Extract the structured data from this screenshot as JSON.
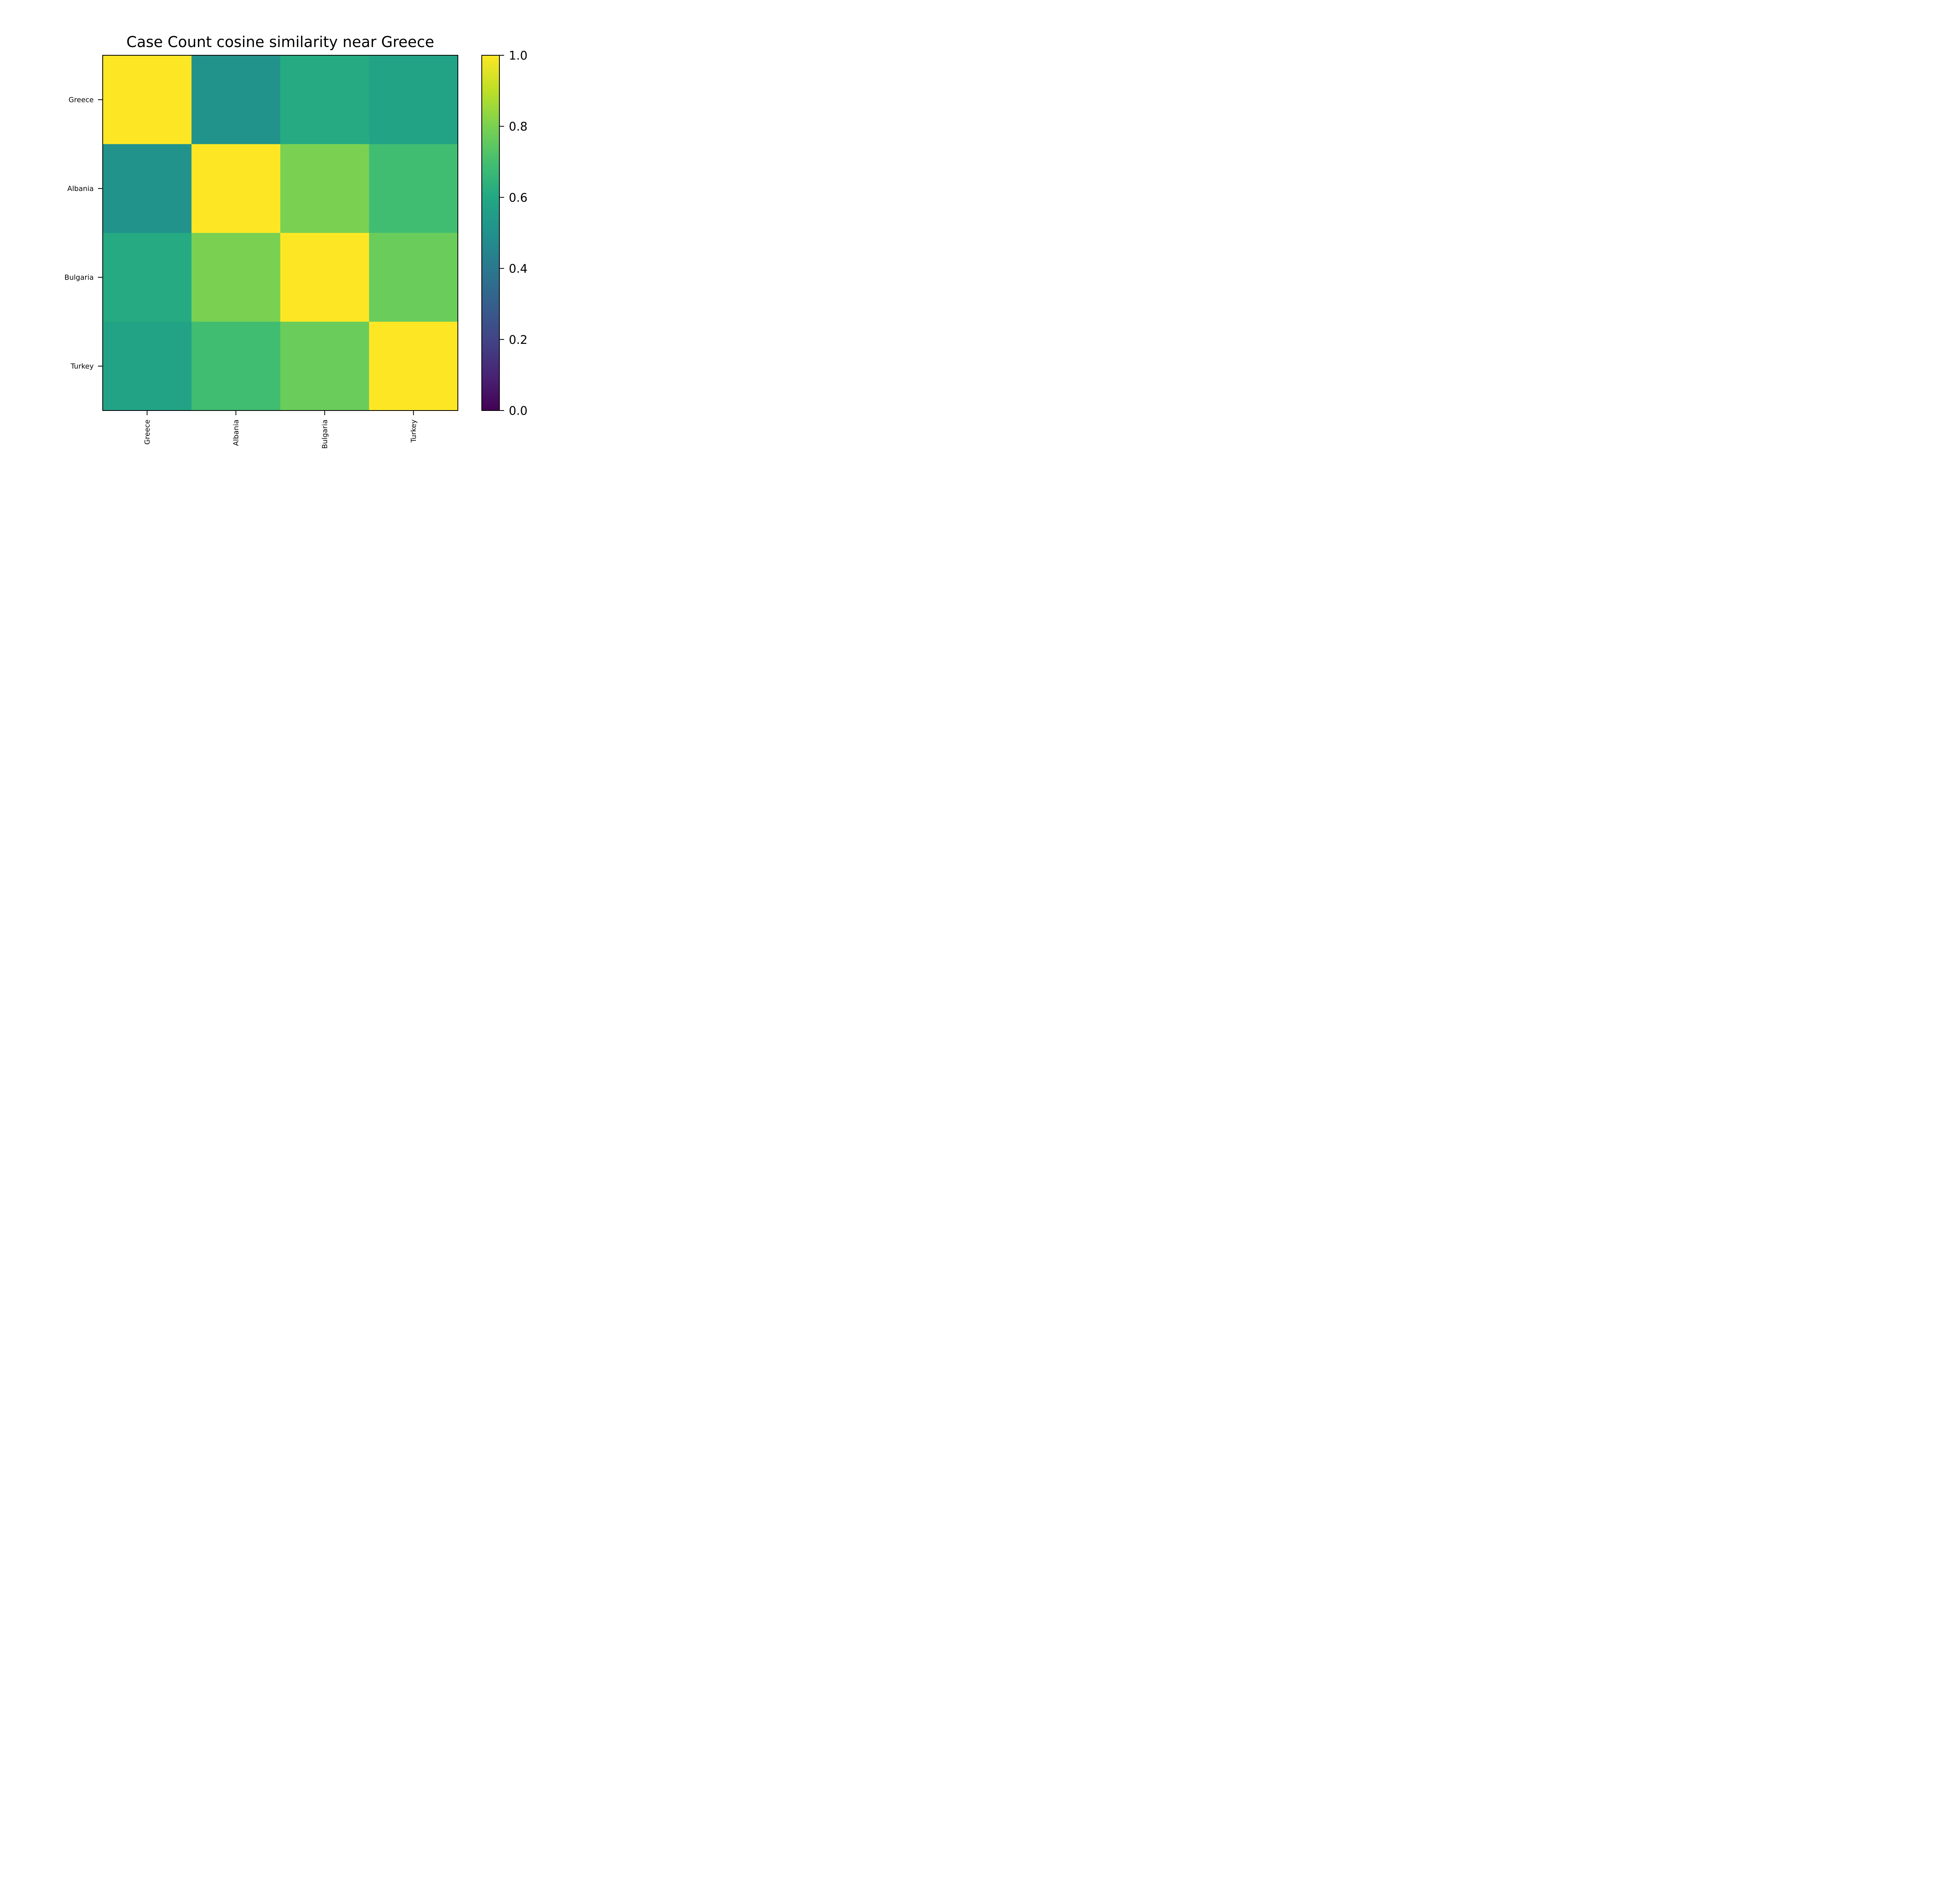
{
  "chart_data": {
    "type": "heatmap",
    "title": "Case Count cosine similarity near Greece",
    "row_labels": [
      "Greece",
      "Albania",
      "Bulgaria",
      "Turkey"
    ],
    "col_labels": [
      "Greece",
      "Albania",
      "Bulgaria",
      "Turkey"
    ],
    "values": [
      [
        1.0,
        0.51,
        0.61,
        0.58
      ],
      [
        0.51,
        1.0,
        0.8,
        0.69
      ],
      [
        0.61,
        0.8,
        1.0,
        0.77
      ],
      [
        0.58,
        0.69,
        0.77,
        1.0
      ]
    ],
    "colormap": "viridis",
    "colorbar": {
      "range": [
        0.0,
        1.0
      ],
      "ticks": [
        "0.0",
        "0.2",
        "0.4",
        "0.6",
        "0.8",
        "1.0"
      ]
    }
  }
}
